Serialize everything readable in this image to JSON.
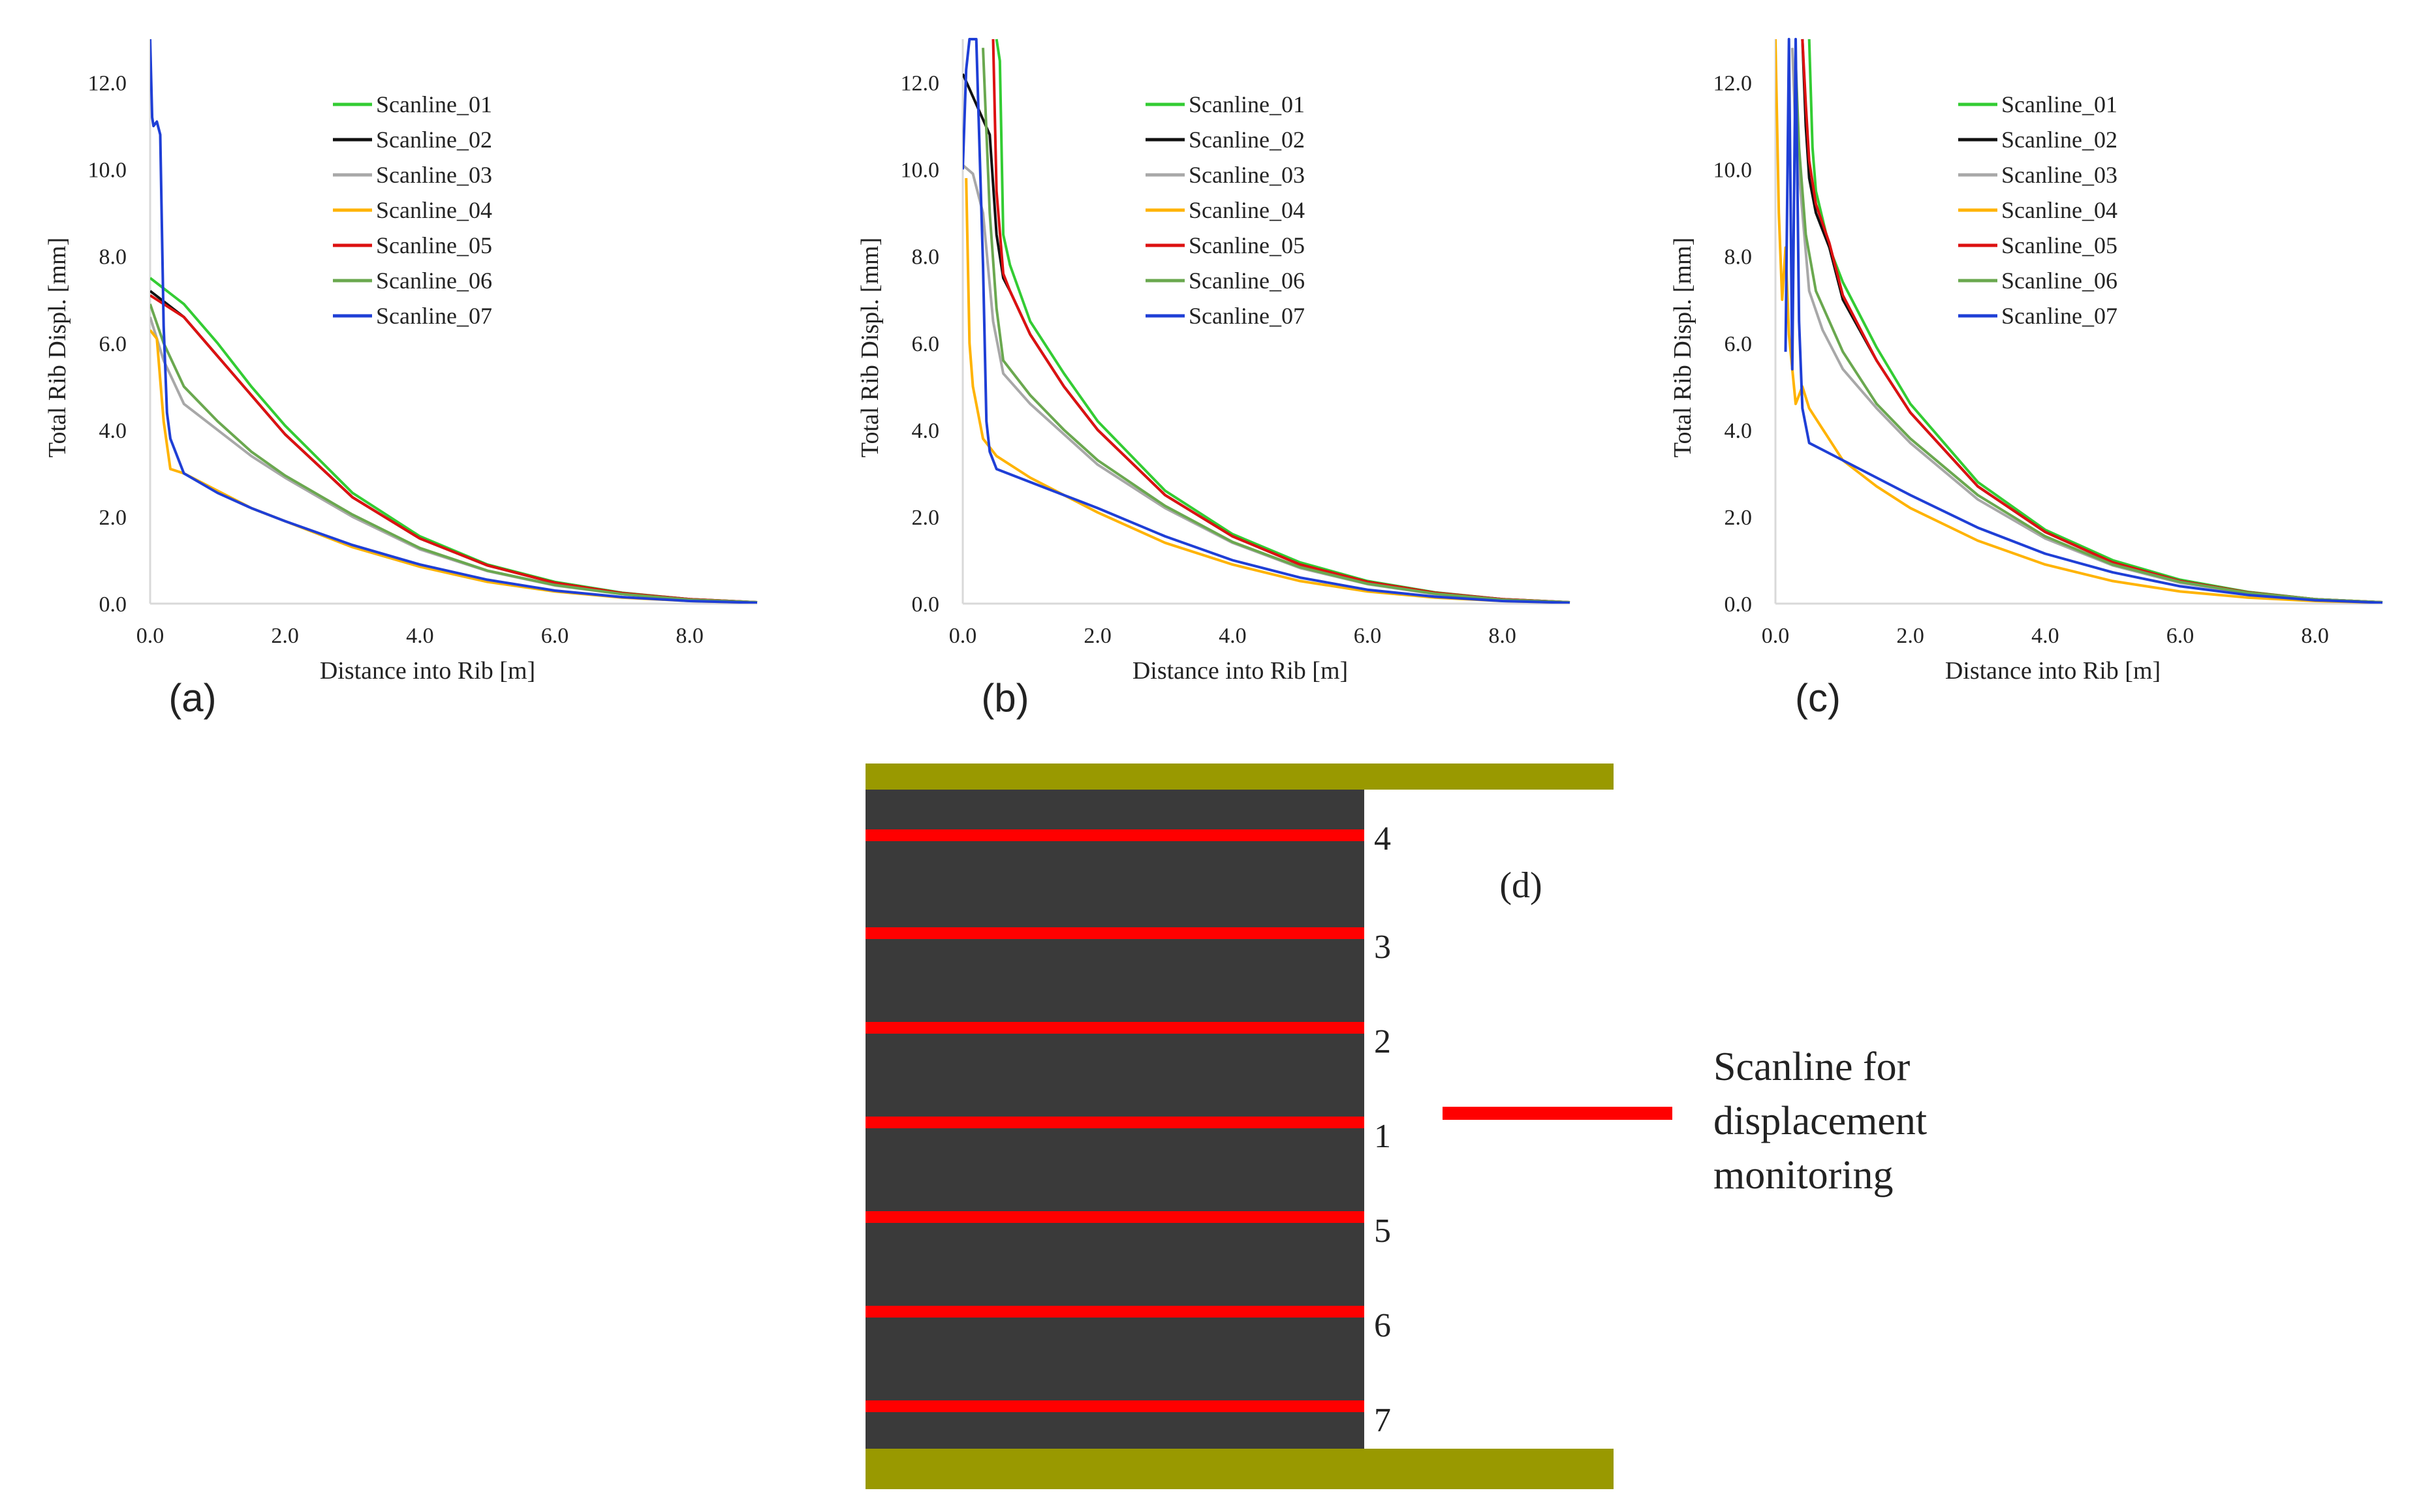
{
  "colors": {
    "Scanline_01": "#33cc33",
    "Scanline_02": "#111111",
    "Scanline_03": "#a8a8a8",
    "Scanline_04": "#ffb300",
    "Scanline_05": "#dd1111",
    "Scanline_06": "#6aa84f",
    "Scanline_07": "#1f3fd6",
    "axis": "#d9d9d9",
    "rib": "#3a3a3a",
    "roof_floor": "#999900",
    "scanline_bar": "#ff0000"
  },
  "chart_data": [
    {
      "panel_label": "(a)",
      "type": "line",
      "xlabel": "Distance into Rib [m]",
      "ylabel": "Total Rib Displ. [mm]",
      "xlim": [
        0,
        9
      ],
      "ylim": [
        0,
        13
      ],
      "x_ticks": [
        "0.0",
        "2.0",
        "4.0",
        "6.0",
        "8.0"
      ],
      "y_ticks": [
        "0.0",
        "2.0",
        "4.0",
        "6.0",
        "8.0",
        "10.0",
        "12.0"
      ],
      "legend_position": "top-right",
      "series": [
        {
          "name": "Scanline_01",
          "x": [
            0,
            0.5,
            1,
            1.5,
            2,
            3,
            4,
            5,
            6,
            7,
            8,
            9
          ],
          "y": [
            7.5,
            6.9,
            6.0,
            5.0,
            4.1,
            2.55,
            1.55,
            0.9,
            0.5,
            0.25,
            0.1,
            0.03
          ]
        },
        {
          "name": "Scanline_02",
          "x": [
            0,
            0.5,
            1,
            1.5,
            2,
            3,
            4,
            5,
            6,
            7,
            8,
            9
          ],
          "y": [
            7.2,
            6.6,
            5.7,
            4.8,
            3.9,
            2.45,
            1.5,
            0.88,
            0.48,
            0.24,
            0.1,
            0.03
          ]
        },
        {
          "name": "Scanline_03",
          "x": [
            0,
            0.2,
            0.5,
            1,
            1.5,
            2,
            3,
            4,
            5,
            6,
            7,
            8,
            9
          ],
          "y": [
            6.6,
            5.6,
            4.6,
            4.0,
            3.4,
            2.9,
            2.0,
            1.25,
            0.75,
            0.42,
            0.22,
            0.09,
            0.03
          ]
        },
        {
          "name": "Scanline_04",
          "x": [
            0,
            0.1,
            0.2,
            0.3,
            0.5,
            1,
            1.5,
            2,
            3,
            4,
            5,
            6,
            7,
            8,
            9
          ],
          "y": [
            6.3,
            6.1,
            4.2,
            3.1,
            3.0,
            2.6,
            2.2,
            1.9,
            1.3,
            0.85,
            0.5,
            0.28,
            0.14,
            0.06,
            0.02
          ]
        },
        {
          "name": "Scanline_05",
          "x": [
            0,
            0.5,
            1,
            1.5,
            2,
            3,
            4,
            5,
            6,
            7,
            8,
            9
          ],
          "y": [
            7.1,
            6.6,
            5.7,
            4.8,
            3.9,
            2.45,
            1.5,
            0.88,
            0.48,
            0.24,
            0.1,
            0.03
          ]
        },
        {
          "name": "Scanline_06",
          "x": [
            0,
            0.2,
            0.5,
            1,
            1.5,
            2,
            3,
            4,
            5,
            6,
            7,
            8,
            9
          ],
          "y": [
            6.9,
            6.0,
            5.0,
            4.2,
            3.5,
            2.95,
            2.05,
            1.28,
            0.76,
            0.43,
            0.22,
            0.09,
            0.03
          ]
        },
        {
          "name": "Scanline_07",
          "x": [
            0,
            0.03,
            0.05,
            0.1,
            0.15,
            0.2,
            0.25,
            0.3,
            0.5,
            1,
            1.5,
            2,
            3,
            4,
            5,
            6,
            7,
            8,
            9
          ],
          "y": [
            13.0,
            11.2,
            11.0,
            11.1,
            10.8,
            6.4,
            4.4,
            3.8,
            3.0,
            2.55,
            2.2,
            1.9,
            1.35,
            0.9,
            0.55,
            0.3,
            0.15,
            0.06,
            0.02
          ]
        }
      ]
    },
    {
      "panel_label": "(b)",
      "type": "line",
      "xlabel": "Distance into Rib [m]",
      "ylabel": "Total Rib Displ. [mm]",
      "xlim": [
        0,
        9
      ],
      "ylim": [
        0,
        13
      ],
      "x_ticks": [
        "0.0",
        "2.0",
        "4.0",
        "6.0",
        "8.0"
      ],
      "y_ticks": [
        "0.0",
        "2.0",
        "4.0",
        "6.0",
        "8.0",
        "10.0",
        "12.0"
      ],
      "legend_position": "top-right",
      "series": [
        {
          "name": "Scanline_01",
          "x": [
            0.5,
            0.55,
            0.6,
            0.7,
            1,
            1.5,
            2,
            3,
            4,
            5,
            6,
            7,
            8,
            9
          ],
          "y": [
            13.0,
            12.5,
            8.5,
            7.8,
            6.5,
            5.3,
            4.2,
            2.6,
            1.6,
            0.95,
            0.52,
            0.26,
            0.1,
            0.03
          ]
        },
        {
          "name": "Scanline_02",
          "x": [
            0,
            0.2,
            0.4,
            0.5,
            0.6,
            0.7,
            1,
            1.5,
            2,
            3,
            4,
            5,
            6,
            7,
            8,
            9
          ],
          "y": [
            12.2,
            11.5,
            10.8,
            8.5,
            7.5,
            7.2,
            6.2,
            5.0,
            4.0,
            2.5,
            1.55,
            0.9,
            0.5,
            0.25,
            0.1,
            0.03
          ]
        },
        {
          "name": "Scanline_03",
          "x": [
            0,
            0.15,
            0.3,
            0.45,
            0.6,
            1,
            1.5,
            2,
            3,
            4,
            5,
            6,
            7,
            8,
            9
          ],
          "y": [
            10.1,
            9.9,
            9.0,
            6.5,
            5.3,
            4.6,
            3.9,
            3.2,
            2.2,
            1.4,
            0.82,
            0.45,
            0.22,
            0.09,
            0.03
          ]
        },
        {
          "name": "Scanline_04",
          "x": [
            0.05,
            0.1,
            0.15,
            0.2,
            0.3,
            0.5,
            1,
            1.5,
            2,
            3,
            4,
            5,
            6,
            7,
            8,
            9
          ],
          "y": [
            9.8,
            6.0,
            5.0,
            4.6,
            3.8,
            3.4,
            2.9,
            2.5,
            2.1,
            1.4,
            0.9,
            0.52,
            0.28,
            0.14,
            0.06,
            0.02
          ]
        },
        {
          "name": "Scanline_05",
          "x": [
            0.45,
            0.5,
            0.6,
            0.7,
            1,
            1.5,
            2,
            3,
            4,
            5,
            6,
            7,
            8,
            9
          ],
          "y": [
            13.0,
            9.5,
            7.6,
            7.2,
            6.2,
            5.0,
            4.0,
            2.5,
            1.55,
            0.9,
            0.5,
            0.25,
            0.1,
            0.03
          ]
        },
        {
          "name": "Scanline_06",
          "x": [
            0.3,
            0.4,
            0.5,
            0.6,
            1,
            1.5,
            2,
            3,
            4,
            5,
            6,
            7,
            8,
            9
          ],
          "y": [
            12.8,
            9.0,
            6.8,
            5.6,
            4.8,
            4.0,
            3.3,
            2.25,
            1.42,
            0.84,
            0.46,
            0.23,
            0.09,
            0.03
          ]
        },
        {
          "name": "Scanline_07",
          "x": [
            0,
            0.05,
            0.1,
            0.2,
            0.3,
            0.35,
            0.4,
            0.5,
            1,
            1.5,
            2,
            3,
            4,
            5,
            6,
            7,
            8,
            9
          ],
          "y": [
            10.0,
            12.3,
            13.0,
            13.0,
            7.8,
            4.2,
            3.5,
            3.1,
            2.8,
            2.5,
            2.2,
            1.55,
            1.0,
            0.6,
            0.32,
            0.16,
            0.06,
            0.02
          ]
        }
      ]
    },
    {
      "panel_label": "(c)",
      "type": "line",
      "xlabel": "Distance into Rib [m]",
      "ylabel": "Total Rib Displ. [mm]",
      "xlim": [
        0,
        9
      ],
      "ylim": [
        0,
        13
      ],
      "x_ticks": [
        "0.0",
        "2.0",
        "4.0",
        "6.0",
        "8.0"
      ],
      "y_ticks": [
        "0.0",
        "2.0",
        "4.0",
        "6.0",
        "8.0",
        "10.0",
        "12.0"
      ],
      "legend_position": "top-right",
      "series": [
        {
          "name": "Scanline_01",
          "x": [
            0.5,
            0.55,
            0.6,
            0.8,
            1,
            1.5,
            2,
            3,
            4,
            5,
            6,
            7,
            8,
            9
          ],
          "y": [
            13.0,
            10.5,
            9.5,
            8.2,
            7.4,
            5.9,
            4.6,
            2.8,
            1.7,
            1.0,
            0.55,
            0.27,
            0.1,
            0.03
          ]
        },
        {
          "name": "Scanline_02",
          "x": [
            0.4,
            0.45,
            0.5,
            0.6,
            0.8,
            1,
            1.5,
            2,
            3,
            4,
            5,
            6,
            7,
            8,
            9
          ],
          "y": [
            13.0,
            11.0,
            9.8,
            9.0,
            8.2,
            7.0,
            5.6,
            4.4,
            2.7,
            1.65,
            0.95,
            0.52,
            0.26,
            0.1,
            0.03
          ]
        },
        {
          "name": "Scanline_03",
          "x": [
            0.25,
            0.3,
            0.4,
            0.5,
            0.7,
            1,
            1.5,
            2,
            3,
            4,
            5,
            6,
            7,
            8,
            9
          ],
          "y": [
            12.8,
            10.8,
            9.0,
            7.2,
            6.3,
            5.4,
            4.5,
            3.7,
            2.4,
            1.5,
            0.88,
            0.48,
            0.24,
            0.1,
            0.03
          ]
        },
        {
          "name": "Scanline_04",
          "x": [
            0,
            0.05,
            0.1,
            0.15,
            0.2,
            0.3,
            0.4,
            0.5,
            1,
            1.5,
            2,
            3,
            4,
            5,
            6,
            7,
            8,
            9
          ],
          "y": [
            13.0,
            9.0,
            7.0,
            8.2,
            6.2,
            4.6,
            5.0,
            4.5,
            3.3,
            2.7,
            2.2,
            1.45,
            0.9,
            0.52,
            0.28,
            0.14,
            0.06,
            0.02
          ]
        },
        {
          "name": "Scanline_05",
          "x": [
            0.4,
            0.45,
            0.5,
            0.6,
            0.8,
            1,
            1.5,
            2,
            3,
            4,
            5,
            6,
            7,
            8,
            9
          ],
          "y": [
            13.0,
            11.5,
            10.2,
            9.2,
            8.3,
            7.1,
            5.6,
            4.4,
            2.7,
            1.65,
            0.95,
            0.52,
            0.26,
            0.1,
            0.03
          ]
        },
        {
          "name": "Scanline_06",
          "x": [
            0.3,
            0.35,
            0.45,
            0.6,
            1,
            1.5,
            2,
            3,
            4,
            5,
            6,
            7,
            8,
            9
          ],
          "y": [
            12.5,
            10.5,
            8.5,
            7.2,
            5.8,
            4.6,
            3.8,
            2.5,
            1.55,
            0.9,
            0.5,
            0.25,
            0.1,
            0.03
          ]
        },
        {
          "name": "Scanline_07",
          "x": [
            0.15,
            0.2,
            0.25,
            0.3,
            0.35,
            0.4,
            0.5,
            1,
            1.5,
            2,
            3,
            4,
            5,
            6,
            7,
            8,
            9
          ],
          "y": [
            5.8,
            13.0,
            5.4,
            13.0,
            6.5,
            4.5,
            3.7,
            3.3,
            2.9,
            2.5,
            1.75,
            1.15,
            0.72,
            0.4,
            0.2,
            0.08,
            0.02
          ]
        }
      ]
    }
  ],
  "legend_labels": [
    "Scanline_01",
    "Scanline_02",
    "Scanline_03",
    "Scanline_04",
    "Scanline_05",
    "Scanline_06",
    "Scanline_07"
  ],
  "diagram": {
    "panel_label": "(d)",
    "scanlines_top_to_bottom": [
      "4",
      "3",
      "2",
      "1",
      "5",
      "6",
      "7"
    ],
    "legend_text_lines": [
      "Scanline for",
      "displacement",
      "monitoring"
    ]
  }
}
